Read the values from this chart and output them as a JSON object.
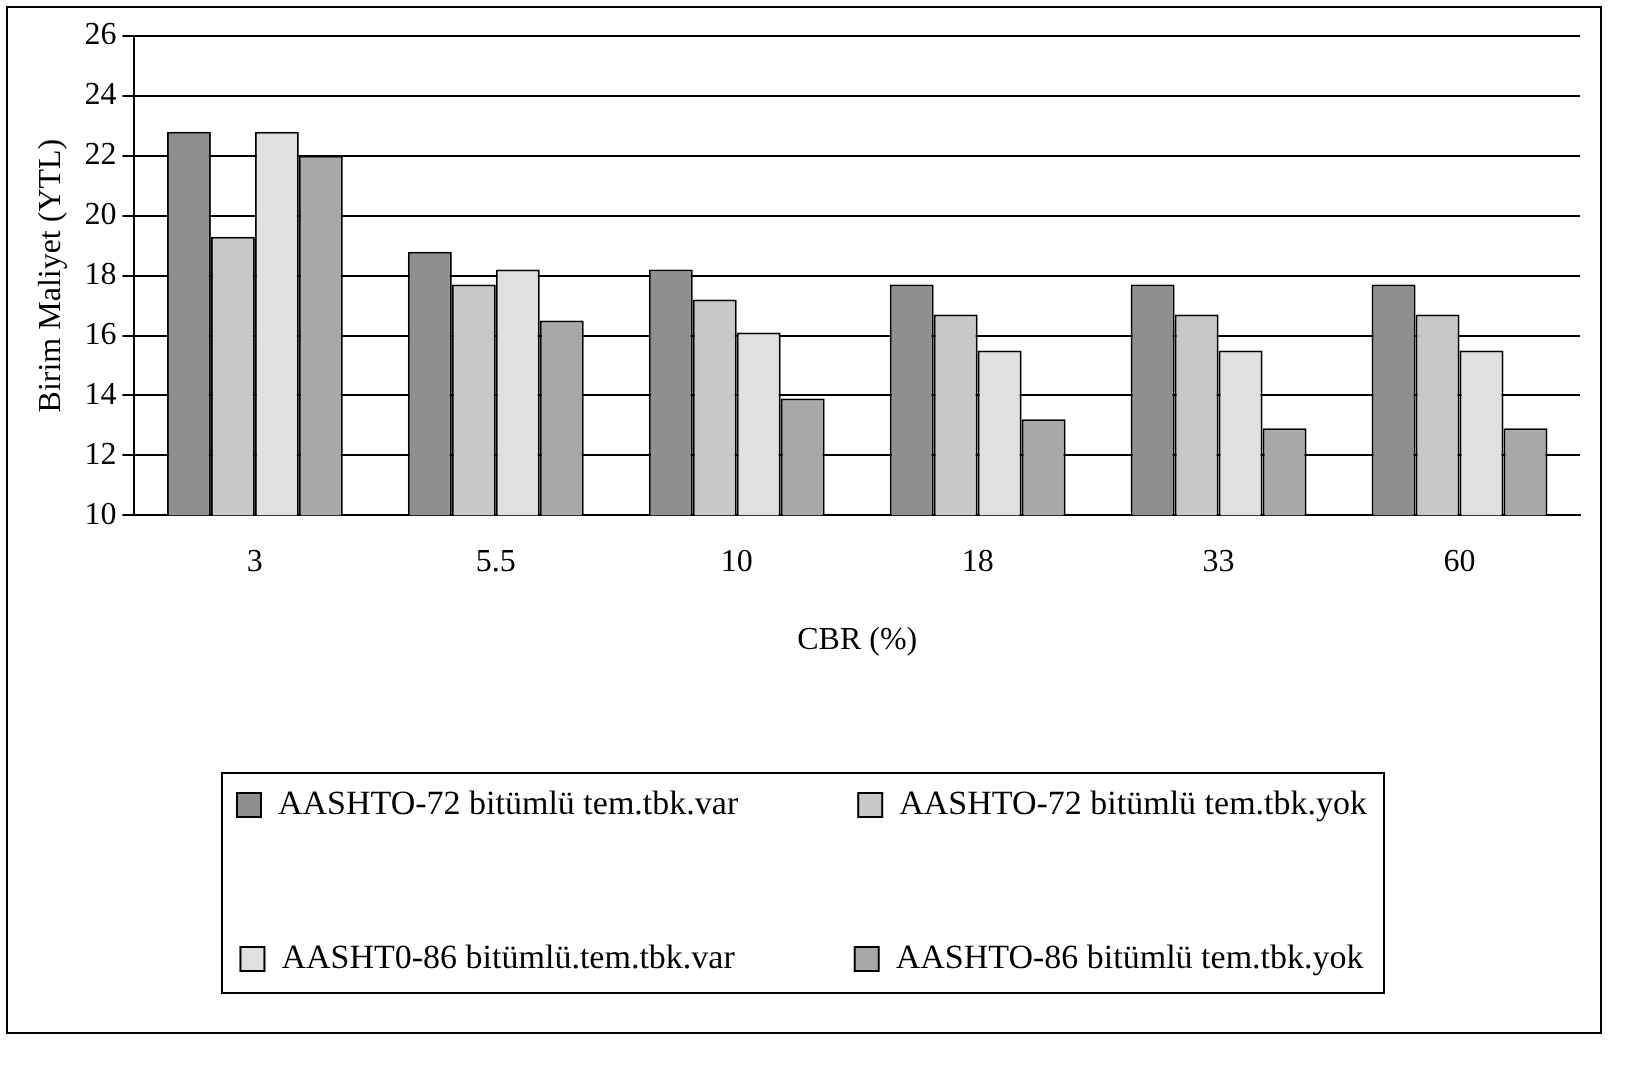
{
  "chart_data": {
    "type": "bar",
    "xlabel": "CBR (%)",
    "ylabel": "Birim Maliyet (YTL)",
    "categories": [
      "3",
      "5.5",
      "10",
      "18",
      "33",
      "60"
    ],
    "ylim": [
      10,
      26
    ],
    "yticks": [
      10,
      12,
      14,
      16,
      18,
      20,
      22,
      24,
      26
    ],
    "grid": "y",
    "legend": "bottom",
    "series": [
      {
        "name": "AASHTO-72 bitümlü tem.tbk.var",
        "color": "#8f8f8f",
        "values": [
          22.8,
          18.8,
          18.2,
          17.7,
          17.7,
          17.7
        ]
      },
      {
        "name": "AASHTO-72 bitümlü tem.tbk.yok",
        "color": "#c8c8c8",
        "values": [
          19.3,
          17.7,
          17.2,
          16.7,
          16.7,
          16.7
        ]
      },
      {
        "name": "AASHT0-86 bitümlü.tem.tbk.var",
        "color": "#e0e0e0",
        "values": [
          22.8,
          18.2,
          16.1,
          15.5,
          15.5,
          15.5
        ]
      },
      {
        "name": "AASHTO-86 bitümlü tem.tbk.yok",
        "color": "#a8a8a8",
        "values": [
          22.0,
          16.5,
          13.9,
          13.2,
          12.9,
          12.9
        ]
      }
    ]
  }
}
